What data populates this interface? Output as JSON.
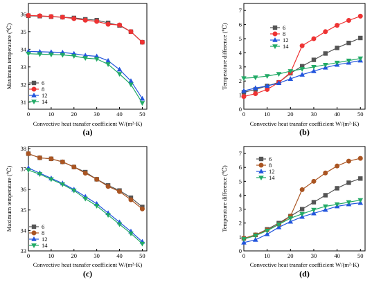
{
  "chart_data": [
    {
      "type": "line",
      "panel_label": "(a)",
      "xlabel": "Convective heat transfer coefficient W/(m²·K)",
      "ylabel": "Maximum temperature (℃)",
      "xlim": [
        0,
        52
      ],
      "ylim": [
        30.6,
        36.6
      ],
      "xticks": [
        0,
        10,
        20,
        30,
        40,
        50
      ],
      "yticks": [
        31,
        32,
        33,
        34,
        35,
        36
      ],
      "legend_position": "left-middle",
      "x": [
        0,
        5,
        10,
        15,
        20,
        25,
        30,
        35,
        40,
        45,
        50
      ],
      "series": [
        {
          "name": "6",
          "color": "#555555",
          "marker": "square",
          "values": [
            35.9,
            35.88,
            35.85,
            35.82,
            35.78,
            35.7,
            35.65,
            35.5,
            35.35,
            35.0,
            34.4
          ]
        },
        {
          "name": "8",
          "color": "#ee3333",
          "marker": "circle",
          "values": [
            35.92,
            35.9,
            35.86,
            35.82,
            35.74,
            35.65,
            35.58,
            35.42,
            35.38,
            35.0,
            34.4
          ]
        },
        {
          "name": "12",
          "color": "#2255dd",
          "marker": "triangle-up",
          "values": [
            33.88,
            33.86,
            33.84,
            33.82,
            33.75,
            33.65,
            33.6,
            33.35,
            32.85,
            32.2,
            31.2
          ]
        },
        {
          "name": "14",
          "color": "#22aa66",
          "marker": "triangle-down",
          "values": [
            33.75,
            33.72,
            33.7,
            33.68,
            33.62,
            33.5,
            33.45,
            33.15,
            32.6,
            32.0,
            30.95
          ]
        }
      ]
    },
    {
      "type": "line",
      "panel_label": "(b)",
      "xlabel": "Convective heat transfer coefficient W/(m²·K)",
      "ylabel": "Temperature difference (℃)",
      "xlim": [
        0,
        52
      ],
      "ylim": [
        0,
        7.5
      ],
      "xticks": [
        0,
        10,
        20,
        30,
        40,
        50
      ],
      "yticks": [
        0,
        1,
        2,
        3,
        4,
        5,
        6,
        7
      ],
      "legend_position": "top-right",
      "x": [
        0,
        5,
        10,
        15,
        20,
        25,
        30,
        35,
        40,
        45,
        50
      ],
      "series": [
        {
          "name": "6",
          "color": "#555555",
          "marker": "square",
          "values": [
            1.2,
            1.4,
            1.65,
            1.9,
            2.55,
            3.05,
            3.5,
            3.95,
            4.35,
            4.7,
            5.05
          ]
        },
        {
          "name": "8",
          "color": "#ee3333",
          "marker": "circle",
          "values": [
            0.9,
            1.1,
            1.4,
            1.9,
            2.6,
            4.5,
            5.0,
            5.5,
            5.95,
            6.3,
            6.6
          ]
        },
        {
          "name": "12",
          "color": "#2255dd",
          "marker": "triangle-up",
          "values": [
            1.3,
            1.5,
            1.65,
            1.85,
            2.15,
            2.45,
            2.7,
            2.95,
            3.15,
            3.3,
            3.45
          ]
        },
        {
          "name": "14",
          "color": "#22aa66",
          "marker": "triangle-down",
          "values": [
            2.2,
            2.25,
            2.35,
            2.5,
            2.7,
            2.85,
            3.0,
            3.15,
            3.3,
            3.45,
            3.6
          ]
        }
      ]
    },
    {
      "type": "line",
      "panel_label": "(c)",
      "xlabel": "Convective heat transfer coefficient W/(m²·K)",
      "ylabel": "Maximum temperature (℃)",
      "xlim": [
        0,
        52
      ],
      "ylim": [
        33,
        38.1
      ],
      "xticks": [
        0,
        10,
        20,
        30,
        40,
        50
      ],
      "yticks": [
        33,
        34,
        35,
        36,
        37,
        38
      ],
      "legend_position": "left-bottom",
      "x": [
        0,
        5,
        10,
        15,
        20,
        25,
        30,
        35,
        40,
        45,
        50
      ],
      "series": [
        {
          "name": "6",
          "color": "#555555",
          "marker": "square",
          "values": [
            37.75,
            37.55,
            37.5,
            37.35,
            37.1,
            36.85,
            36.5,
            36.2,
            35.95,
            35.6,
            35.15
          ]
        },
        {
          "name": "8",
          "color": "#aa5522",
          "marker": "circle",
          "values": [
            37.75,
            37.55,
            37.5,
            37.35,
            37.1,
            36.8,
            36.5,
            36.15,
            35.9,
            35.5,
            35.05
          ]
        },
        {
          "name": "12",
          "color": "#2255dd",
          "marker": "triangle-up",
          "values": [
            37.05,
            36.8,
            36.55,
            36.3,
            36.0,
            35.65,
            35.3,
            34.85,
            34.4,
            33.95,
            33.45
          ]
        },
        {
          "name": "14",
          "color": "#22aa66",
          "marker": "triangle-down",
          "values": [
            36.95,
            36.75,
            36.5,
            36.25,
            35.95,
            35.55,
            35.2,
            34.75,
            34.3,
            33.85,
            33.35
          ]
        }
      ]
    },
    {
      "type": "line",
      "panel_label": "(d)",
      "xlabel": "Convective heat transfer coefficient W/(m²·K)",
      "ylabel": "Temperature difference (℃)",
      "xlim": [
        0,
        52
      ],
      "ylim": [
        0,
        7.5
      ],
      "xticks": [
        0,
        10,
        20,
        30,
        40,
        50
      ],
      "yticks": [
        0,
        1,
        2,
        3,
        4,
        5,
        6,
        7
      ],
      "legend_position": "top-left",
      "x": [
        0,
        5,
        10,
        15,
        20,
        25,
        30,
        35,
        40,
        45,
        50
      ],
      "series": [
        {
          "name": "6",
          "color": "#555555",
          "marker": "square",
          "values": [
            0.9,
            1.15,
            1.55,
            2.0,
            2.5,
            3.0,
            3.5,
            4.0,
            4.5,
            4.9,
            5.2
          ]
        },
        {
          "name": "8",
          "color": "#aa5522",
          "marker": "circle",
          "values": [
            0.9,
            1.15,
            1.5,
            1.9,
            2.5,
            4.4,
            5.0,
            5.6,
            6.1,
            6.45,
            6.65
          ]
        },
        {
          "name": "12",
          "color": "#2255dd",
          "marker": "triangle-up",
          "values": [
            0.6,
            0.8,
            1.2,
            1.7,
            2.1,
            2.45,
            2.7,
            2.95,
            3.2,
            3.35,
            3.45
          ]
        },
        {
          "name": "14",
          "color": "#22aa66",
          "marker": "triangle-down",
          "values": [
            0.85,
            1.1,
            1.45,
            1.9,
            2.35,
            2.65,
            2.95,
            3.2,
            3.35,
            3.5,
            3.65
          ]
        }
      ]
    }
  ]
}
